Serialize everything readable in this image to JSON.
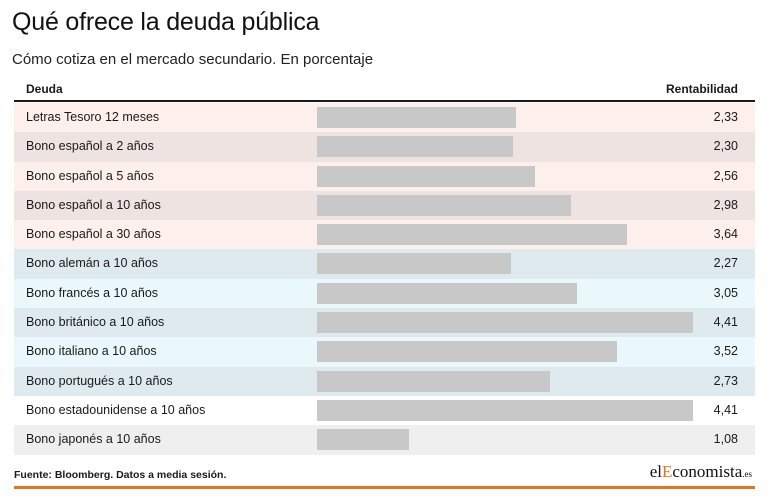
{
  "title": "Qué ofrece la deuda pública",
  "subtitle": "Cómo cotiza en el mercado secundario. En porcentaje",
  "header": {
    "left": "Deuda",
    "right": "Rentabilidad"
  },
  "footer": {
    "source": "Fuente: Bloomberg. Datos a media sesión."
  },
  "logo": {
    "prefix": "el",
    "accent": "E",
    "rest": "conomista",
    "tld": ".es"
  },
  "colors": {
    "row_spain_a": "#fdf0ec",
    "row_spain_b": "#efe3e1",
    "row_euro_a": "#eaf8fb",
    "row_euro_b": "#deeaee",
    "row_other_a": "#ffffff",
    "row_other_b": "#efefef",
    "bar": "#c8c8c8",
    "accent": "#e8731a"
  },
  "chart_data": {
    "type": "bar",
    "orientation": "horizontal",
    "categories": [
      "Letras Tesoro 12 meses",
      "Bono español a 2 años",
      "Bono español a 5 años",
      "Bono español a 10 años",
      "Bono español a 30 años",
      "Bono alemán a 10 años",
      "Bono francés a 10 años",
      "Bono británico a 10 años",
      "Bono italiano a 10 años",
      "Bono portugués a 10 años",
      "Bono estadounidense a 10 años",
      "Bono japonés a 10 años"
    ],
    "values": [
      2.33,
      2.3,
      2.56,
      2.98,
      3.64,
      2.27,
      3.05,
      4.41,
      3.52,
      2.73,
      4.41,
      1.08
    ],
    "value_labels": [
      "2,33",
      "2,30",
      "2,56",
      "2,98",
      "3,64",
      "2,27",
      "3,05",
      "4,41",
      "3,52",
      "2,73",
      "4,41",
      "1,08"
    ],
    "groups": [
      "spain",
      "spain",
      "spain",
      "spain",
      "spain",
      "euro",
      "euro",
      "euro",
      "euro",
      "euro",
      "other",
      "other"
    ],
    "xlim": [
      0,
      4.41
    ],
    "grid": false,
    "legend": "none"
  }
}
